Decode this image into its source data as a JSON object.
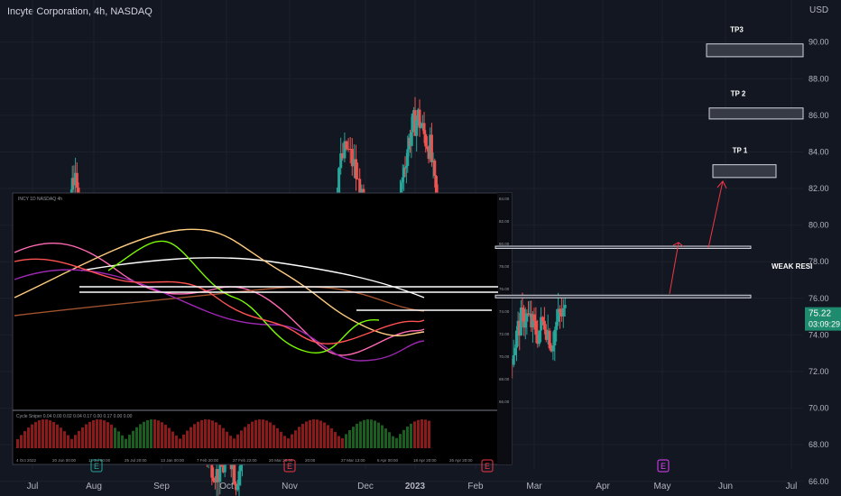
{
  "header": {
    "title": "Incyte Corporation, 4h, NASDAQ",
    "currency": "USD"
  },
  "price_tag": {
    "price": "75.22",
    "countdown": "03:09:29",
    "value": 75.22
  },
  "targets": [
    {
      "label": "TP3",
      "low": 89.2,
      "high": 89.9
    },
    {
      "label": "TP 2",
      "low": 85.8,
      "high": 86.4
    },
    {
      "label": "TP 1",
      "low": 82.6,
      "high": 83.3
    }
  ],
  "levels": {
    "weak_label": "WEAK RESI",
    "weak_resistance": 78.8,
    "support": 76.1
  },
  "event_markers": [
    {
      "label": "E",
      "month": "Aug",
      "color": "#26a69a"
    },
    {
      "label": "E",
      "month": "Nov",
      "color": "#f23645"
    },
    {
      "label": "E",
      "month": "Feb",
      "color": "#f23645"
    },
    {
      "label": "E",
      "month": "May",
      "color": "#e040fb"
    }
  ],
  "inset": {
    "header": "INCY 1D NASDAQ 4h",
    "osc_label": "Cycle Sniper 0.04 0.00 0.02 0.04 0.17 0.00 0.17 0.00 0.00",
    "price_ticks": [
      "84.00",
      "82.00",
      "80.00",
      "78.00",
      "76.00",
      "74.00",
      "72.00",
      "70.00",
      "68.00",
      "66.00"
    ],
    "date_ticks": [
      "4 Oct 2022",
      "20 Jun 00:00",
      "11 Jul 00:00",
      "25 Jul 20:00",
      "13 Jan 00:00",
      "7 Feb 20:00",
      "27 Feb 22:00",
      "20 Mar 20:00",
      "20:00",
      "27 Mar 13:00",
      "5 Apr 00:00",
      "18 Apr 20:00",
      "26 Apr 20:00"
    ]
  },
  "chart_data": {
    "type": "candlestick",
    "title": "Incyte Corporation, 4h, NASDAQ",
    "y_axis_ticks": [
      90.0,
      88.0,
      86.0,
      84.0,
      82.0,
      80.0,
      78.0,
      76.0,
      74.0,
      72.0,
      70.0,
      68.0,
      66.0
    ],
    "y_tick_labels": [
      "90.00",
      "88.00",
      "86.00",
      "84.00",
      "82.00",
      "80.00",
      "78.00",
      "76.00",
      "74.00",
      "72.00",
      "70.00",
      "68.00",
      "66.00"
    ],
    "ylim": [
      65.2,
      92.3
    ],
    "x_axis_labels": [
      "Jul",
      "Aug",
      "Sep",
      "Oct",
      "Nov",
      "Dec",
      "2023",
      "Feb",
      "Mar",
      "Apr",
      "May",
      "Jun",
      "Jul"
    ],
    "x_label_months": [
      0,
      1,
      2,
      3,
      4,
      5,
      6,
      7,
      8,
      9,
      10,
      11,
      12
    ],
    "series": [
      {
        "name": "INCY 4h",
        "points": [
          [
            -0.05,
            74.6
          ],
          [
            0.1,
            77.8
          ],
          [
            0.25,
            80.5
          ],
          [
            0.4,
            78.9
          ],
          [
            0.5,
            80.0
          ],
          [
            0.6,
            79.1
          ],
          [
            0.65,
            83.0
          ],
          [
            0.75,
            81.2
          ],
          [
            0.85,
            77.8
          ],
          [
            0.95,
            76.1
          ],
          [
            1.05,
            75.8
          ],
          [
            1.15,
            76.5
          ],
          [
            1.25,
            75.3
          ],
          [
            1.35,
            75.1
          ],
          [
            1.45,
            71.8
          ],
          [
            1.55,
            74.2
          ],
          [
            1.65,
            75.8
          ],
          [
            1.75,
            75.2
          ],
          [
            1.85,
            74.3
          ],
          [
            1.95,
            73.2
          ],
          [
            2.05,
            73.6
          ],
          [
            2.15,
            71.1
          ],
          [
            2.25,
            71.8
          ],
          [
            2.35,
            69.2
          ],
          [
            2.45,
            71.3
          ],
          [
            2.55,
            69.8
          ],
          [
            2.65,
            67.9
          ],
          [
            2.75,
            67.2
          ],
          [
            2.85,
            66.4
          ],
          [
            2.95,
            66.8
          ],
          [
            3.05,
            67.8
          ],
          [
            3.15,
            66.1
          ],
          [
            3.25,
            67.3
          ],
          [
            3.35,
            70.2
          ],
          [
            3.45,
            68.1
          ],
          [
            3.55,
            69.8
          ],
          [
            3.65,
            72.4
          ],
          [
            3.75,
            70.6
          ],
          [
            3.85,
            75.8
          ],
          [
            3.95,
            77.6
          ],
          [
            4.05,
            76.1
          ],
          [
            4.15,
            76.8
          ],
          [
            4.25,
            77.3
          ],
          [
            4.35,
            77.8
          ],
          [
            4.45,
            78.2
          ],
          [
            4.55,
            79.4
          ],
          [
            4.65,
            83.1
          ],
          [
            4.75,
            84.2
          ],
          [
            4.85,
            83.2
          ],
          [
            4.95,
            81.2
          ],
          [
            5.05,
            80.3
          ],
          [
            5.15,
            81.1
          ],
          [
            5.25,
            79.7
          ],
          [
            5.35,
            79.2
          ],
          [
            5.45,
            80.1
          ],
          [
            5.55,
            78.6
          ],
          [
            5.65,
            80.3
          ],
          [
            5.75,
            82.6
          ],
          [
            5.85,
            84.3
          ],
          [
            5.95,
            85.4
          ],
          [
            6.05,
            85.9
          ],
          [
            6.15,
            84.9
          ],
          [
            6.25,
            84.2
          ],
          [
            6.35,
            81.3
          ],
          [
            6.45,
            79.6
          ],
          [
            6.55,
            79.1
          ],
          [
            6.65,
            78.2
          ],
          [
            6.75,
            77.6
          ],
          [
            6.85,
            76.1
          ],
          [
            6.95,
            76.6
          ],
          [
            7.05,
            74.5
          ],
          [
            7.15,
            73.2
          ],
          [
            7.25,
            72.6
          ],
          [
            7.35,
            71.1
          ],
          [
            7.45,
            70.6
          ],
          [
            7.55,
            72.1
          ],
          [
            7.65,
            73.3
          ],
          [
            7.75,
            74.6
          ],
          [
            7.85,
            75.1
          ],
          [
            7.95,
            74.6
          ],
          [
            8.05,
            74.1
          ],
          [
            8.15,
            74.8
          ],
          [
            8.25,
            73.6
          ],
          [
            8.35,
            74.9
          ],
          [
            8.45,
            75.22
          ]
        ]
      }
    ]
  }
}
